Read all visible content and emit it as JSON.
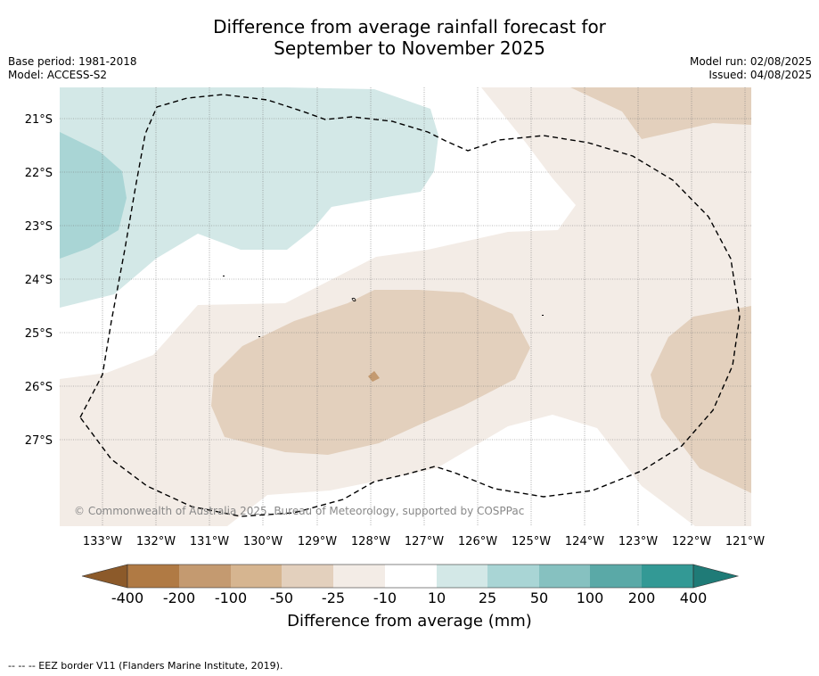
{
  "title": {
    "line1": "Difference from average rainfall forecast for",
    "line2": "September to November 2025"
  },
  "meta_left": {
    "base_period": "Base period: 1981-2018",
    "model": "Model: ACCESS-S2"
  },
  "meta_right": {
    "model_run": "Model run: 02/08/2025",
    "issued": "Issued: 04/08/2025"
  },
  "copyright": "© Commonwealth of Australia 2025, Bureau of Meteorology, supported by COSPPac",
  "map_data": {
    "lat_labels": [
      "21°S",
      "22°S",
      "23°S",
      "24°S",
      "25°S",
      "26°S",
      "27°S"
    ],
    "lon_labels": [
      "133°W",
      "132°W",
      "131°W",
      "130°W",
      "129°W",
      "128°W",
      "127°W",
      "126°W",
      "125°W",
      "124°W",
      "123°W",
      "122°W",
      "121°W"
    ]
  },
  "colorbar": {
    "title": "Difference from average (mm)",
    "ticks": [
      "-400",
      "-200",
      "-100",
      "-50",
      "-25",
      "-10",
      "10",
      "25",
      "50",
      "100",
      "200",
      "400"
    ],
    "colors": [
      "#8c5a2a",
      "#b07a44",
      "#c49a70",
      "#d6b590",
      "#e3d0bd",
      "#f3ece6",
      "#ffffff",
      "#d3e8e7",
      "#a9d5d5",
      "#86c1c0",
      "#5aa9a7",
      "#339995",
      "#1f7b77"
    ]
  },
  "footnote": "-- -- -- EEZ border V11 (Flanders Marine Institute, 2019)."
}
